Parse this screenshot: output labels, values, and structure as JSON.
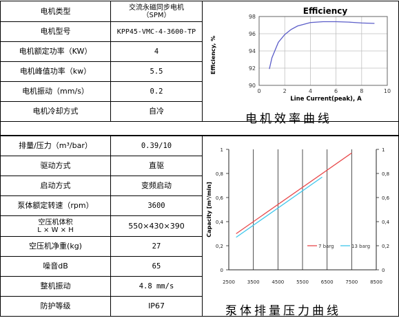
{
  "top_rows": [
    {
      "label": "电机类型",
      "value_line1": "交流永磁同步电机",
      "value_line2": "（SPM）"
    },
    {
      "label": "电机型号",
      "value": "KPP45-VMC-4-3600-TP"
    },
    {
      "label": "电机额定功率（KW）",
      "value": "4"
    },
    {
      "label": "电机峰值功率（kw）",
      "value": "5.5"
    },
    {
      "label": "电机振动（mm/s）",
      "value": "0.2"
    },
    {
      "label": "电机冷却方式",
      "value": "自冷"
    }
  ],
  "bottom_rows": [
    {
      "label": "排量/压力（m³/bar）",
      "value": "0.39/10"
    },
    {
      "label": "驱动方式",
      "value": "直驱"
    },
    {
      "label": "启动方式",
      "value": "变频启动"
    },
    {
      "label": "泵体额定转速（rpm）",
      "value": "3600"
    },
    {
      "label_line1": "空压机体积",
      "label_line2": "L × W × H",
      "value": "550×430×390"
    },
    {
      "label": "空压机净重(kg)",
      "value": "27"
    },
    {
      "label": "噪音dB",
      "value": "65"
    },
    {
      "label": "整机振动",
      "value": "4.8 mm/s"
    },
    {
      "label": "防护等级",
      "value": "IP67"
    }
  ],
  "captions": {
    "efficiency": "电机效率曲线",
    "capacity": "泵体排量压力曲线"
  },
  "colors": {
    "efficiency_line": "#5a5cc8",
    "grid": "#bfbfbf",
    "series_7bar": "#e8484a",
    "series_13bar": "#3ec7ec"
  },
  "chart_data": [
    {
      "type": "line",
      "title": "Efficiency",
      "xlabel": "Line Current(peak), A",
      "ylabel": "Efficiency, %",
      "xlim": [
        0,
        10
      ],
      "ylim": [
        90,
        98
      ],
      "xticks": [
        "0",
        "2",
        "4",
        "6",
        "8",
        "10"
      ],
      "yticks": [
        "90",
        "92",
        "94",
        "96",
        "98"
      ],
      "grid": true,
      "series": [
        {
          "x": [
            0.8,
            1.0,
            1.5,
            2.0,
            2.5,
            3.0,
            4.0,
            5.0,
            6.0,
            7.0,
            8.0,
            9.0
          ],
          "y": [
            91.9,
            93.2,
            95.0,
            95.9,
            96.5,
            96.9,
            97.3,
            97.4,
            97.4,
            97.35,
            97.25,
            97.2
          ]
        }
      ]
    },
    {
      "type": "line",
      "title": "",
      "xlabel": "",
      "ylabel": "Capacity [m³/min]",
      "xlim": [
        2500,
        8500
      ],
      "ylim": [
        0,
        1
      ],
      "xticks": [
        "2500",
        "3500",
        "4500",
        "5500",
        "6500",
        "7500",
        "8500"
      ],
      "yticks": [
        "0",
        "0,2",
        "0,4",
        "0,6",
        "0,8",
        "1"
      ],
      "legend": "bottom-right",
      "grid": true,
      "series": [
        {
          "name": "7 barg",
          "x": [
            2800,
            7500
          ],
          "y": [
            0.3,
            0.97
          ]
        },
        {
          "name": "13 barg",
          "x": [
            2800,
            6300
          ],
          "y": [
            0.27,
            0.77
          ]
        }
      ]
    }
  ]
}
